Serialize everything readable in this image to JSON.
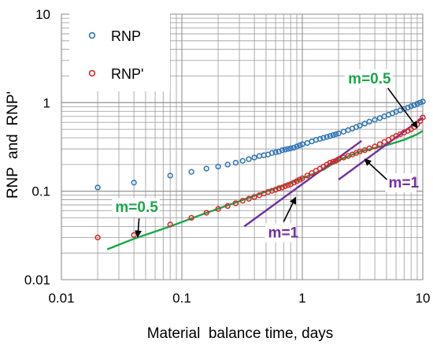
{
  "chart_data": {
    "type": "scatter",
    "x_scale": "log",
    "y_scale": "log",
    "xlim": [
      0.01,
      10
    ],
    "ylim": [
      0.01,
      10
    ],
    "xlabel": "Material  balance time, days",
    "ylabel": "RNP  and  RNP'",
    "x_ticks": [
      "0.01",
      "0.1",
      "1",
      "10"
    ],
    "y_ticks": [
      "0.01",
      "0.1",
      "1",
      "10"
    ],
    "grid": true,
    "legend_position": "top-left",
    "series": [
      {
        "name": "RNP",
        "color": "#2e75b6",
        "marker": "open-circle",
        "x": [
          0.02,
          0.04,
          0.08,
          0.12,
          0.16,
          0.2,
          0.24,
          0.28,
          0.32,
          0.36,
          0.4,
          0.44,
          0.48,
          0.52,
          0.56,
          0.6,
          0.64,
          0.68,
          0.72,
          0.76,
          0.8,
          0.85,
          0.9,
          0.95,
          1.0,
          1.1,
          1.2,
          1.3,
          1.4,
          1.5,
          1.6,
          1.7,
          1.8,
          1.9,
          2.0,
          2.2,
          2.4,
          2.6,
          2.8,
          3.0,
          3.3,
          3.6,
          4.0,
          4.4,
          4.8,
          5.2,
          5.6,
          6.0,
          6.5,
          7.0,
          7.5,
          8.0,
          8.5,
          9.0,
          9.5,
          10.0
        ],
        "y": [
          0.11,
          0.125,
          0.15,
          0.165,
          0.18,
          0.19,
          0.2,
          0.21,
          0.22,
          0.23,
          0.24,
          0.25,
          0.255,
          0.26,
          0.27,
          0.275,
          0.28,
          0.29,
          0.295,
          0.3,
          0.305,
          0.31,
          0.32,
          0.33,
          0.34,
          0.35,
          0.365,
          0.38,
          0.39,
          0.4,
          0.41,
          0.42,
          0.43,
          0.44,
          0.45,
          0.47,
          0.49,
          0.51,
          0.53,
          0.55,
          0.58,
          0.61,
          0.64,
          0.67,
          0.7,
          0.73,
          0.76,
          0.79,
          0.82,
          0.85,
          0.88,
          0.91,
          0.94,
          0.97,
          1.0,
          1.03
        ]
      },
      {
        "name": "RNP'",
        "color": "#d62728",
        "marker": "open-circle",
        "x": [
          0.02,
          0.04,
          0.08,
          0.12,
          0.16,
          0.2,
          0.24,
          0.28,
          0.32,
          0.36,
          0.4,
          0.44,
          0.48,
          0.52,
          0.56,
          0.6,
          0.64,
          0.68,
          0.72,
          0.76,
          0.8,
          0.85,
          0.9,
          0.95,
          1.0,
          1.1,
          1.2,
          1.3,
          1.4,
          1.5,
          1.6,
          1.7,
          1.8,
          1.9,
          2.0,
          2.2,
          2.4,
          2.6,
          2.8,
          3.0,
          3.3,
          3.6,
          4.0,
          4.4,
          4.8,
          5.2,
          5.6,
          6.0,
          6.5,
          7.0,
          7.5,
          8.0,
          8.5,
          9.0,
          9.5,
          10.0
        ],
        "y": [
          0.03,
          0.032,
          0.042,
          0.05,
          0.057,
          0.063,
          0.068,
          0.073,
          0.078,
          0.082,
          0.086,
          0.09,
          0.094,
          0.098,
          0.101,
          0.104,
          0.108,
          0.11,
          0.114,
          0.117,
          0.12,
          0.125,
          0.13,
          0.135,
          0.14,
          0.15,
          0.16,
          0.17,
          0.18,
          0.19,
          0.2,
          0.21,
          0.215,
          0.22,
          0.23,
          0.24,
          0.25,
          0.26,
          0.27,
          0.28,
          0.29,
          0.305,
          0.32,
          0.34,
          0.36,
          0.38,
          0.4,
          0.42,
          0.44,
          0.46,
          0.48,
          0.5,
          0.53,
          0.57,
          0.62,
          0.68
        ]
      }
    ],
    "fit_lines": [
      {
        "label": "m=0.5",
        "color": "#1aa64a",
        "x": [
          0.024,
          0.04,
          0.08,
          0.15,
          0.3,
          0.6,
          1.0,
          1.5,
          2.0,
          3.0,
          5.0,
          7.0,
          9.0,
          10.0
        ],
        "y": [
          0.022,
          0.029,
          0.04,
          0.055,
          0.077,
          0.108,
          0.14,
          0.175,
          0.225,
          0.28,
          0.33,
          0.38,
          0.44,
          0.48
        ]
      },
      {
        "label": "m=1",
        "color": "#7030a0",
        "x": [
          0.33,
          3.1
        ],
        "y": [
          0.04,
          0.37
        ]
      },
      {
        "label": "m=1",
        "color": "#7030a0",
        "x": [
          2.0,
          10.0
        ],
        "y": [
          0.135,
          0.675
        ]
      }
    ],
    "annotations": [
      {
        "text": "m=0.5",
        "color": "#1aa64a",
        "tx": 0.028,
        "ty": 0.058,
        "ax": 0.043,
        "ay": 0.0305
      },
      {
        "text": "m=0.5",
        "color": "#1aa64a",
        "tx": 2.4,
        "ty": 1.65,
        "ax": 9.0,
        "ay": 0.52
      },
      {
        "text": "m=1",
        "color": "#7030a0",
        "tx": 0.52,
        "ty": 0.03,
        "ax": 0.88,
        "ay": 0.085
      },
      {
        "text": "m=1",
        "color": "#7030a0",
        "tx": 5.2,
        "ty": 0.11,
        "ax": 3.3,
        "ay": 0.23
      }
    ]
  }
}
